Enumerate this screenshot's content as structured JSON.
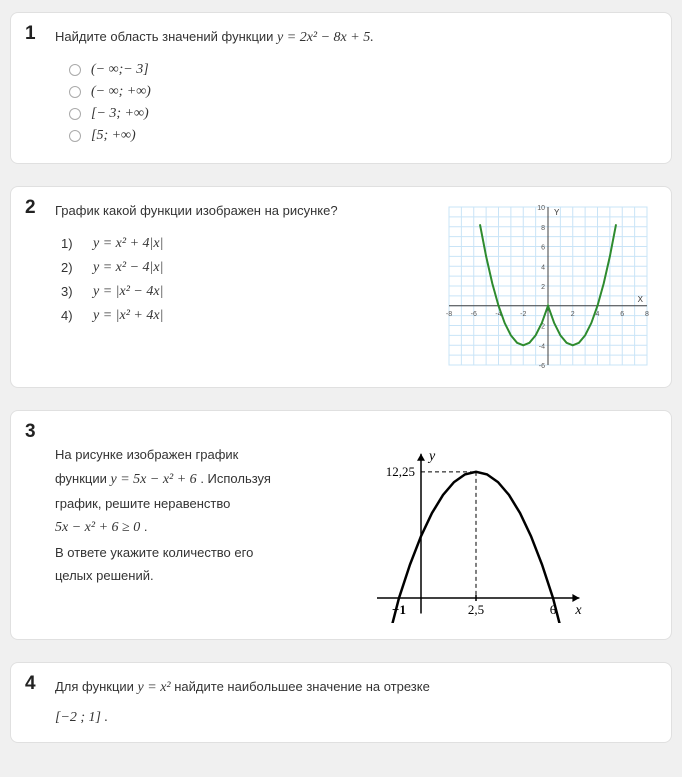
{
  "q1": {
    "number": "1",
    "prompt_prefix": "Найдите область значений функции  ",
    "prompt_formula": "y = 2x² − 8x + 5.",
    "options": [
      "(− ∞;− 3]",
      "(− ∞;  +∞)",
      "[− 3;  +∞)",
      "[5;  +∞)"
    ]
  },
  "q2": {
    "number": "2",
    "prompt": "График какой функции изображен на рисунке?",
    "options": [
      {
        "idx": "1)",
        "f": "y = x² + 4|x|"
      },
      {
        "idx": "2)",
        "f": "y =  x² − 4|x|"
      },
      {
        "idx": "3)",
        "f": "y =  |x² − 4x|"
      },
      {
        "idx": "4)",
        "f": "y = |x² + 4x|"
      }
    ],
    "chart": {
      "type": "line",
      "background_color": "#ffffff",
      "grid_color": "#c9e4f7",
      "axis_color": "#3f3f3f",
      "line_color": "#2e8b2e",
      "line_width": 2,
      "xlim": [
        -8,
        8
      ],
      "ylim": [
        -6,
        10
      ],
      "xticks": [
        -8,
        -6,
        -4,
        -2,
        0,
        2,
        4,
        6,
        8
      ],
      "yticks": [
        -6,
        -4,
        -2,
        0,
        2,
        4,
        6,
        8,
        10
      ],
      "xlabel": "X",
      "ylabel": "Y",
      "data_x": [
        -5.5,
        -5,
        -4.5,
        -4,
        -3.5,
        -3,
        -2.5,
        -2,
        -1.5,
        -1,
        -0.5,
        0,
        0.5,
        1,
        1.5,
        2,
        2.5,
        3,
        3.5,
        4,
        4.5,
        5,
        5.5
      ],
      "data_y": [
        8.25,
        5,
        2.25,
        0,
        -1.75,
        -3,
        -3.75,
        -4,
        -3.75,
        -3,
        -1.75,
        0,
        -1.75,
        -3,
        -3.75,
        -4,
        -3.75,
        -3,
        -1.75,
        0,
        2.25,
        5,
        8.25
      ]
    }
  },
  "q3": {
    "number": "3",
    "text_parts": {
      "l1": "На рисунке изображен график",
      "l2a": "функции ",
      "l2f": "y = 5x − x² + 6",
      "l2b": " . Используя",
      "l3": "график, решите неравенство",
      "l4f": "5x − x² + 6 ≥ 0",
      "l4b": " .",
      "l5": "В ответе укажите количество его",
      "l6": "целых решений."
    },
    "chart": {
      "type": "line",
      "background_color": "#ffffff",
      "axis_color": "#000000",
      "line_color": "#000000",
      "line_width": 2.5,
      "xlim": [
        -2,
        7.2
      ],
      "ylim": [
        -2,
        14
      ],
      "vertex_x": 2.5,
      "vertex_y": 12.25,
      "roots": [
        -1,
        6
      ],
      "ylabel": "y",
      "xlabel": "x",
      "labels": {
        "ymax": "12,25",
        "r1": "−1",
        "vx": "2,5",
        "r2": "6"
      },
      "data_x": [
        -1.3,
        -1,
        -0.5,
        0,
        0.5,
        1,
        1.5,
        2,
        2.5,
        3,
        3.5,
        4,
        4.5,
        5,
        5.5,
        6,
        6.3
      ],
      "data_y": [
        -2.49,
        0,
        3.25,
        6,
        8.25,
        10,
        11.25,
        12,
        12.25,
        12,
        11.25,
        10,
        8.25,
        6,
        3.25,
        0,
        -2.49
      ]
    }
  },
  "q4": {
    "number": "4",
    "t1": "Для функции ",
    "f1": "y = x²",
    "t2": " найдите наибольшее значение на отрезке",
    "interval": "[−2 ; 1] ."
  }
}
